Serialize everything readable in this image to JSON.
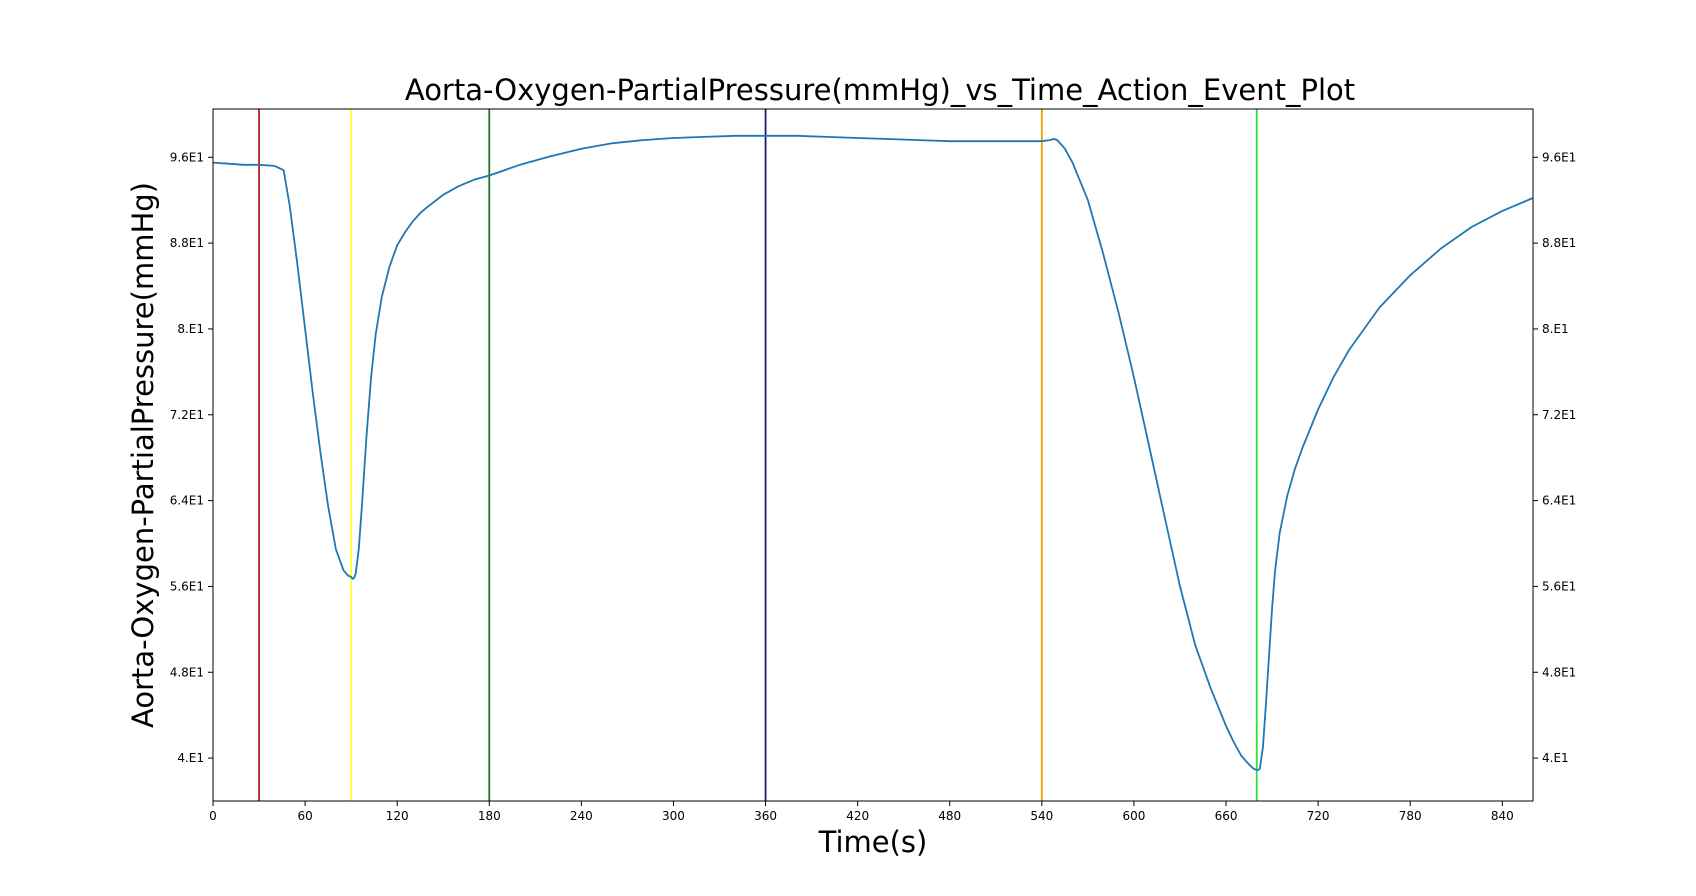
{
  "chart_data": {
    "type": "line",
    "title": "Aorta-Oxygen-PartialPressure(mmHg)_vs_Time_Action_Event_Plot",
    "xlabel": "Time(s)",
    "ylabel": "Aorta-Oxygen-PartialPressure(mmHg)",
    "xlim": [
      0,
      860
    ],
    "ylim": [
      36,
      100.5
    ],
    "x_ticks": [
      0,
      60,
      120,
      180,
      240,
      300,
      360,
      420,
      480,
      540,
      600,
      660,
      720,
      780,
      840
    ],
    "x_tick_labels": [
      "0",
      "60",
      "120",
      "180",
      "240",
      "300",
      "360",
      "420",
      "480",
      "540",
      "600",
      "660",
      "720",
      "780",
      "840"
    ],
    "y_ticks": [
      40,
      48,
      56,
      64,
      72,
      80,
      88,
      96
    ],
    "y_tick_labels": [
      "4.E1",
      "4.8E1",
      "5.6E1",
      "6.4E1",
      "7.2E1",
      "8.E1",
      "8.8E1",
      "9.6E1"
    ],
    "grid": false,
    "line_color": "#1f77b4",
    "series": [
      {
        "x": [
          0,
          10,
          20,
          30,
          40,
          43,
          46,
          50,
          55,
          60,
          65,
          70,
          75,
          80,
          85,
          88,
          90,
          91,
          92,
          93,
          95,
          97,
          100,
          103,
          106,
          110,
          115,
          120,
          125,
          130,
          135,
          140,
          150,
          160,
          170,
          180,
          200,
          220,
          240,
          260,
          280,
          300,
          320,
          340,
          360,
          380,
          400,
          420,
          440,
          460,
          480,
          500,
          520,
          540,
          545,
          548,
          550,
          555,
          560,
          570,
          580,
          590,
          600,
          610,
          620,
          630,
          640,
          650,
          660,
          665,
          670,
          675,
          678,
          680,
          681,
          682,
          684,
          686,
          688,
          690,
          692,
          695,
          700,
          705,
          710,
          720,
          730,
          740,
          760,
          780,
          800,
          820,
          840,
          860
        ],
        "y": [
          95.5,
          95.4,
          95.3,
          95.3,
          95.2,
          95.0,
          94.8,
          91.5,
          86.0,
          80.0,
          74.0,
          68.5,
          63.5,
          59.5,
          57.5,
          57.0,
          56.9,
          56.7,
          56.8,
          57.2,
          59.5,
          63.5,
          70.0,
          75.5,
          79.5,
          83.0,
          85.8,
          87.8,
          89.0,
          90.0,
          90.8,
          91.4,
          92.5,
          93.3,
          93.9,
          94.3,
          95.3,
          96.1,
          96.8,
          97.3,
          97.6,
          97.8,
          97.9,
          98.0,
          98.0,
          98.0,
          97.9,
          97.8,
          97.7,
          97.6,
          97.5,
          97.5,
          97.5,
          97.5,
          97.6,
          97.7,
          97.6,
          96.8,
          95.5,
          92.0,
          87.0,
          81.5,
          75.5,
          69.0,
          62.5,
          56.0,
          50.5,
          46.5,
          43.0,
          41.5,
          40.2,
          39.4,
          39.0,
          38.9,
          38.9,
          39.0,
          41.0,
          45.0,
          49.5,
          54.0,
          57.5,
          61.0,
          64.5,
          67.0,
          69.0,
          72.5,
          75.5,
          78.0,
          82.0,
          85.0,
          87.5,
          89.5,
          91.0,
          92.2
        ]
      }
    ],
    "events": [
      {
        "x": 30,
        "color": "#b22222"
      },
      {
        "x": 90,
        "color": "#ffff33"
      },
      {
        "x": 180,
        "color": "#1f7a1f"
      },
      {
        "x": 360,
        "color": "#1a1a80"
      },
      {
        "x": 540,
        "color": "#f0a000"
      },
      {
        "x": 680,
        "color": "#33dd33"
      }
    ]
  }
}
